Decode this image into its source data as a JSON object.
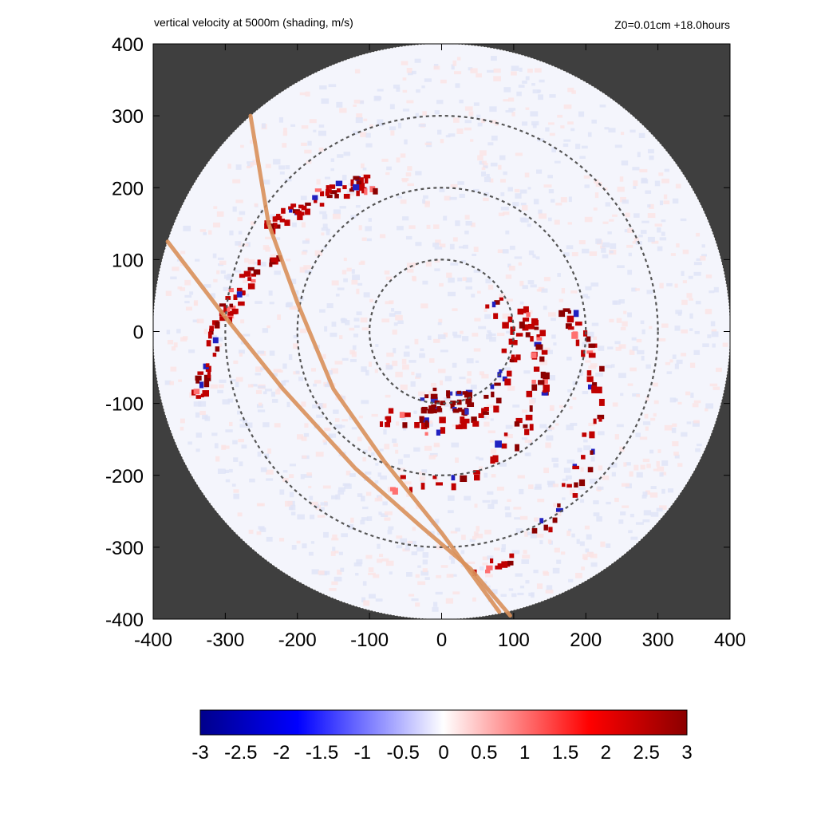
{
  "chart_data": {
    "type": "heatmap",
    "title": "vertical velocity at 5000m (shading, m/s)",
    "subtitle": "Z0=0.01cm  +18.0hours",
    "xlim": [
      -400,
      400
    ],
    "ylim": [
      -400,
      400
    ],
    "x_ticks": [
      "-400",
      "-300",
      "-200",
      "-100",
      "0",
      "100",
      "200",
      "300",
      "400"
    ],
    "y_ticks": [
      "400",
      "300",
      "200",
      "100",
      "0",
      "-100",
      "-200",
      "-300",
      "-400"
    ],
    "domain_radius": 400,
    "range_rings": [
      100,
      200,
      300
    ],
    "colorbar": {
      "min": -3,
      "max": 3,
      "ticks": [
        "-3",
        "-2.5",
        "-2",
        "-1.5",
        "-1",
        "-0.5",
        "0",
        "0.5",
        "1",
        "1.5",
        "2",
        "2.5",
        "3"
      ]
    },
    "tracks": [
      {
        "points": [
          [
            -265,
            300
          ],
          [
            -240,
            150
          ],
          [
            -200,
            40
          ],
          [
            -150,
            -80
          ],
          [
            -80,
            -180
          ],
          [
            0,
            -280
          ],
          [
            80,
            -390
          ]
        ]
      },
      {
        "points": [
          [
            -380,
            125
          ],
          [
            -300,
            20
          ],
          [
            -220,
            -80
          ],
          [
            -120,
            -190
          ],
          [
            -30,
            -270
          ],
          [
            40,
            -330
          ],
          [
            95,
            -395
          ]
        ]
      }
    ],
    "colors": {
      "background_mask": "#3f3f3f",
      "negative_max": "#00008b",
      "positive_max": "#8b0000",
      "track": "#d9905a",
      "ring": "#555555"
    }
  }
}
